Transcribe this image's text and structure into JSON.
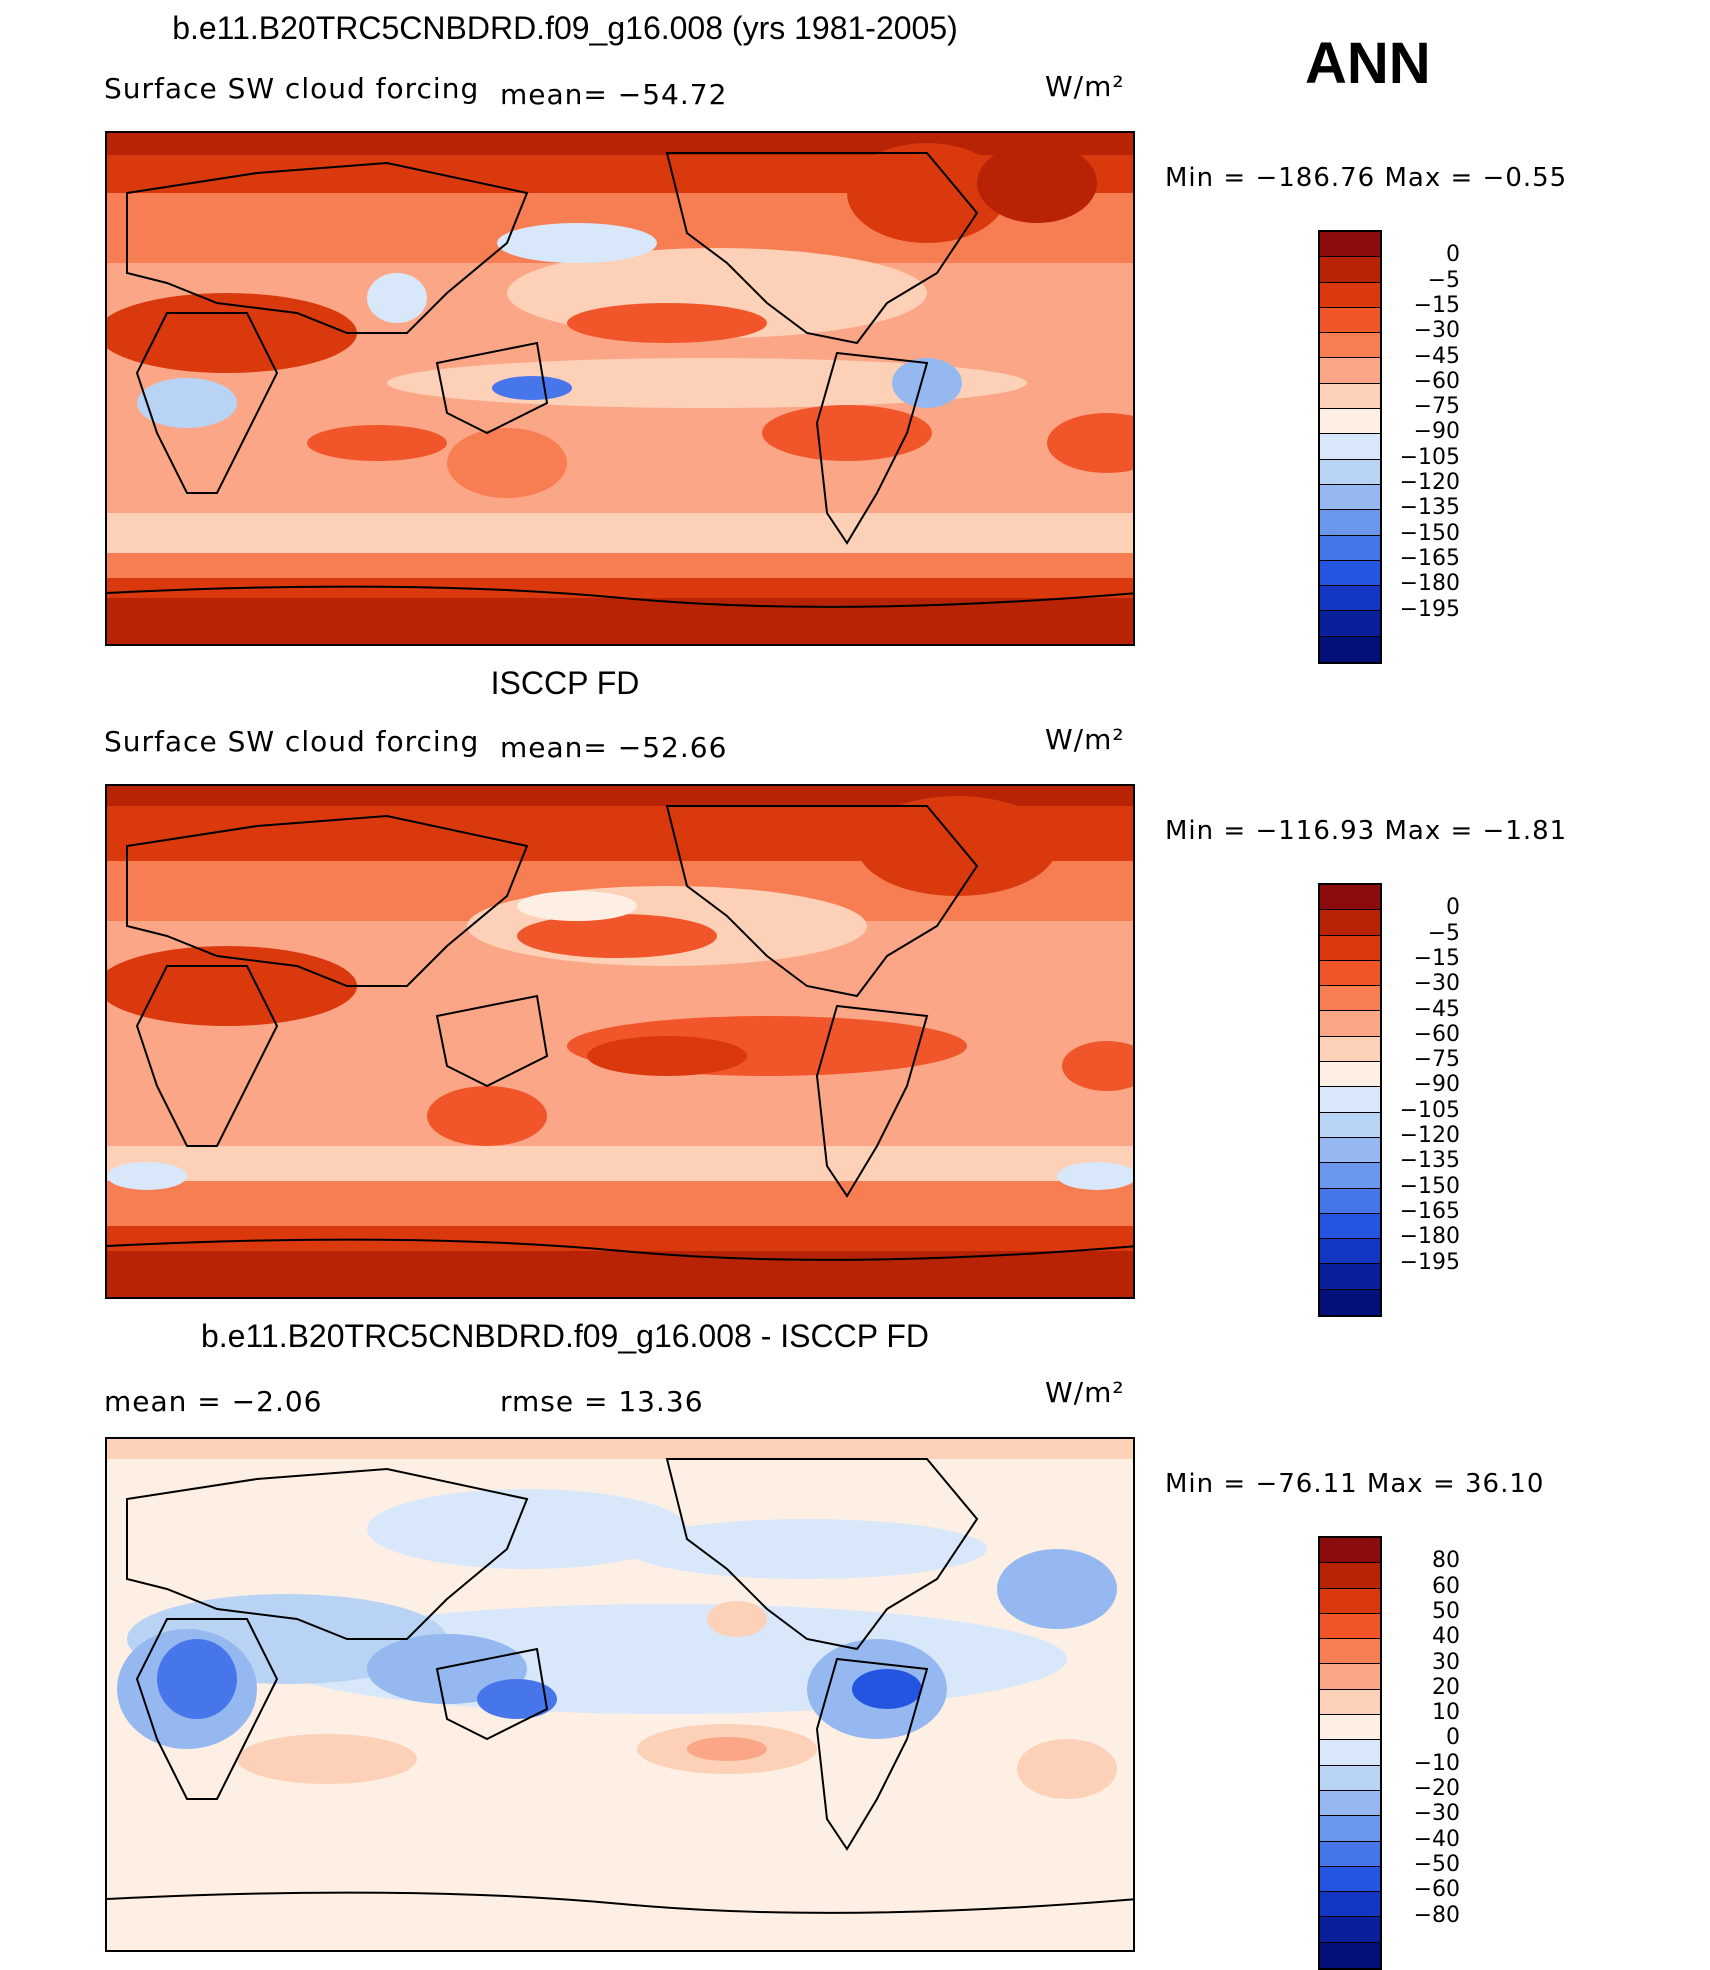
{
  "header": {
    "season": "ANN"
  },
  "panels": [
    {
      "title": "b.e11.B20TRC5CNBDRD.f09_g16.008 (yrs 1981-2005)",
      "left_label": "Surface SW cloud forcing",
      "center_label": "mean=  −54.72",
      "units": "W/m²",
      "minmax": "Min  =  −186.76  Max  =    −0.55",
      "colorbar": {
        "colors": [
          "#8a0c0c",
          "#b82205",
          "#d9390d",
          "#f1562a",
          "#f77d52",
          "#fba787",
          "#fdd0b8",
          "#fdefe3",
          "#d8e8fa",
          "#b9d3f5",
          "#95b8f1",
          "#6a97ec",
          "#4676ea",
          "#2455e0",
          "#1337c2",
          "#0a1f9c",
          "#04107a"
        ],
        "labels": [
          "0",
          "−5",
          "−15",
          "−30",
          "−45",
          "−60",
          "−75",
          "−90",
          "−105",
          "−120",
          "−135",
          "−150",
          "−165",
          "−180",
          "−195"
        ]
      }
    },
    {
      "title": "ISCCP FD",
      "left_label": "Surface SW cloud forcing",
      "center_label": "mean=  −52.66",
      "units": "W/m²",
      "minmax": "Min  =  −116.93  Max  =    −1.81",
      "colorbar": {
        "colors": [
          "#8a0c0c",
          "#b82205",
          "#d9390d",
          "#f1562a",
          "#f77d52",
          "#fba787",
          "#fdd0b8",
          "#fdefe3",
          "#d8e8fa",
          "#b9d3f5",
          "#95b8f1",
          "#6a97ec",
          "#4676ea",
          "#2455e0",
          "#1337c2",
          "#0a1f9c",
          "#04107a"
        ],
        "labels": [
          "0",
          "−5",
          "−15",
          "−30",
          "−45",
          "−60",
          "−75",
          "−90",
          "−105",
          "−120",
          "−135",
          "−150",
          "−165",
          "−180",
          "−195"
        ]
      }
    },
    {
      "title": "b.e11.B20TRC5CNBDRD.f09_g16.008 - ISCCP FD",
      "left_label": "mean  =    −2.06",
      "center_label": "rmse  =    13.36",
      "units": "W/m²",
      "minmax": "Min  =  −76.11  Max  =    36.10",
      "colorbar": {
        "colors": [
          "#8a0c0c",
          "#b82205",
          "#d9390d",
          "#f1562a",
          "#f77d52",
          "#fba787",
          "#fdd0b8",
          "#fdefe3",
          "#d8e8fa",
          "#b9d3f5",
          "#95b8f1",
          "#6a97ec",
          "#4676ea",
          "#2455e0",
          "#1337c2",
          "#0a1f9c",
          "#04107a"
        ],
        "labels": [
          "80",
          "60",
          "50",
          "40",
          "30",
          "20",
          "10",
          "0",
          "−10",
          "−20",
          "−30",
          "−40",
          "−50",
          "−60",
          "−80"
        ]
      }
    }
  ]
}
